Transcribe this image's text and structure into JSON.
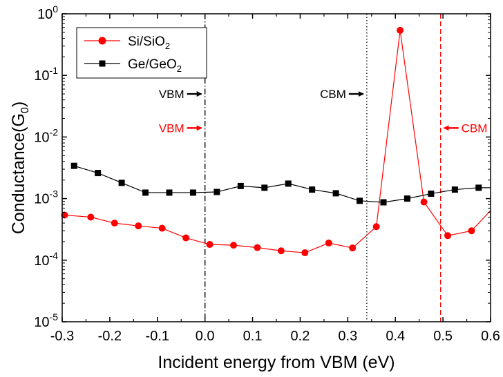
{
  "chart_data": {
    "type": "line",
    "x_axis": {
      "label": "Incident energy from VBM (eV)",
      "range": [
        -0.3,
        0.6
      ],
      "ticks": [
        -0.3,
        -0.2,
        -0.1,
        0.0,
        0.1,
        0.2,
        0.3,
        0.4,
        0.5,
        0.6
      ],
      "tick_labels": [
        "-0.3",
        "-0.2",
        "-0.1",
        "0.0",
        "0.1",
        "0.2",
        "0.3",
        "0.4",
        "0.5",
        "0.6"
      ]
    },
    "y_axis": {
      "label_main": "Conductance(G",
      "label_sub": "0",
      "label_end": ")",
      "scale": "log",
      "range": [
        1e-05,
        1
      ],
      "ticks": [
        {
          "value": 1,
          "base": "10",
          "exp": "0"
        },
        {
          "value": 0.1,
          "base": "10",
          "exp": "-1"
        },
        {
          "value": 0.01,
          "base": "10",
          "exp": "-2"
        },
        {
          "value": 0.001,
          "base": "10",
          "exp": "-3"
        },
        {
          "value": 0.0001,
          "base": "10",
          "exp": "-4"
        },
        {
          "value": 1e-05,
          "base": "10",
          "exp": "-5"
        }
      ]
    },
    "series": [
      {
        "name": "Si/SiO2",
        "legend_main": "Si/SiO",
        "legend_sub": "2",
        "color": "#ff0000",
        "marker": "circle",
        "x": [
          -0.295,
          -0.24,
          -0.19,
          -0.14,
          -0.09,
          -0.04,
          0.01,
          0.06,
          0.11,
          0.16,
          0.21,
          0.26,
          0.31,
          0.36,
          0.41,
          0.46,
          0.51,
          0.56,
          0.6
        ],
        "y": [
          0.00054,
          0.0005,
          0.0004,
          0.00036,
          0.00033,
          0.00023,
          0.00018,
          0.000175,
          0.00016,
          0.000142,
          0.000132,
          0.00019,
          0.000158,
          0.00035,
          0.54,
          0.00088,
          0.00025,
          0.0003,
          0.00064
        ]
      },
      {
        "name": "Ge/GeO2",
        "legend_main": "Ge/GeO",
        "legend_sub": "2",
        "color": "#000000",
        "marker": "square",
        "x": [
          -0.275,
          -0.225,
          -0.175,
          -0.125,
          -0.075,
          -0.025,
          0.025,
          0.075,
          0.125,
          0.175,
          0.225,
          0.275,
          0.325,
          0.375,
          0.425,
          0.475,
          0.525,
          0.575,
          0.6
        ],
        "y": [
          0.0034,
          0.0026,
          0.0018,
          0.00125,
          0.00125,
          0.00125,
          0.00128,
          0.0016,
          0.0015,
          0.00175,
          0.0014,
          0.00122,
          0.00092,
          0.00087,
          0.001,
          0.0012,
          0.0014,
          0.0015,
          0.0015
        ]
      }
    ],
    "reference_lines": [
      {
        "name": "Si/SiO2 VBM",
        "x": 0.0,
        "color": "#ff0000",
        "style": "dashdot"
      },
      {
        "name": "Ge/GeO2 VBM",
        "x": 0.0,
        "color": "#000000",
        "style": "dashdot"
      },
      {
        "name": "Ge/GeO2 CBM",
        "x": 0.34,
        "color": "#000000",
        "style": "dotted"
      },
      {
        "name": "Si/SiO2 CBM",
        "x": 0.495,
        "color": "#ff0000",
        "style": "dashed"
      }
    ],
    "annotations": [
      {
        "text": "VBM",
        "color": "#000000",
        "x": 0.0,
        "y": 0.05,
        "arrow": "right"
      },
      {
        "text": "VBM",
        "color": "#ff0000",
        "x": 0.0,
        "y": 0.014,
        "arrow": "right"
      },
      {
        "text": "CBM",
        "color": "#000000",
        "x": 0.34,
        "y": 0.05,
        "arrow": "right"
      },
      {
        "text": "CBM",
        "color": "#ff0000",
        "x": 0.495,
        "y": 0.014,
        "arrow": "left"
      }
    ],
    "legend_position": "top-left"
  }
}
